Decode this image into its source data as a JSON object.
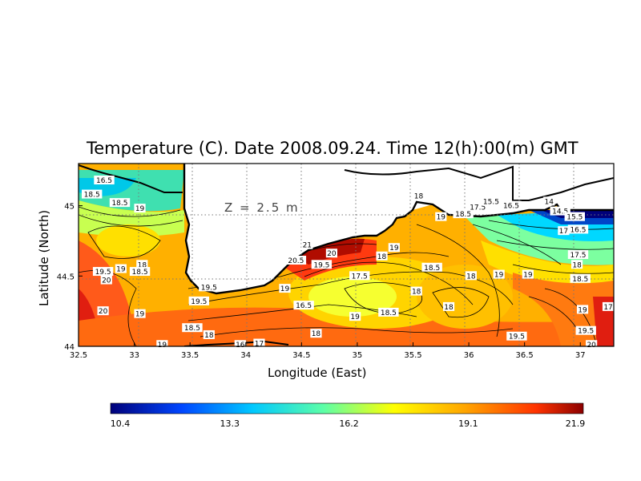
{
  "chart_data": {
    "type": "heatmap",
    "title": "Temperature (C). Date 2008.09.24. Time 12(h):00(m) GMT",
    "xlabel": "Longitude (East)",
    "ylabel": "Latitude (North)",
    "depth_label": "Z = 2.5 m",
    "xlim": [
      32.5,
      37.3
    ],
    "ylim": [
      44.0,
      45.3
    ],
    "x_ticks": [
      "32.5",
      "33",
      "33.5",
      "34",
      "34.5",
      "35",
      "35.5",
      "36",
      "36.5",
      "37"
    ],
    "x_tick_values": [
      32.5,
      33,
      33.5,
      34,
      34.5,
      35,
      35.5,
      36,
      36.5,
      37
    ],
    "y_ticks": [
      "44",
      "44.5",
      "45"
    ],
    "y_tick_values": [
      44.0,
      44.5,
      45.0
    ],
    "grid": true,
    "colorbar": {
      "min": 10.4,
      "max": 21.9,
      "tick_labels": [
        "10.4",
        "13.3",
        "16.2",
        "19.1",
        "21.9"
      ],
      "colors": [
        "#00007a",
        "#0046ff",
        "#00c8ff",
        "#5cffa8",
        "#ffff00",
        "#ffa500",
        "#ff3300",
        "#8b0000"
      ]
    },
    "contour_labels": [
      {
        "text": "19.5",
        "lon": 32.72,
        "lat": 44.53
      },
      {
        "text": "20",
        "lon": 32.75,
        "lat": 44.47
      },
      {
        "text": "20",
        "lon": 32.72,
        "lat": 44.25
      },
      {
        "text": "18",
        "lon": 33.07,
        "lat": 44.58
      },
      {
        "text": "18.5",
        "lon": 33.05,
        "lat": 44.53
      },
      {
        "text": "19",
        "lon": 32.88,
        "lat": 44.55
      },
      {
        "text": "19",
        "lon": 33.05,
        "lat": 44.98
      },
      {
        "text": "18.5",
        "lon": 32.87,
        "lat": 45.02
      },
      {
        "text": "19",
        "lon": 33.05,
        "lat": 44.23
      },
      {
        "text": "18.5",
        "lon": 33.52,
        "lat": 44.13
      },
      {
        "text": "19.5",
        "lon": 33.67,
        "lat": 44.42
      },
      {
        "text": "19.5",
        "lon": 33.58,
        "lat": 44.32
      },
      {
        "text": "18",
        "lon": 33.67,
        "lat": 44.08
      },
      {
        "text": "19",
        "lon": 33.25,
        "lat": 44.01
      },
      {
        "text": "19",
        "lon": 34.35,
        "lat": 44.41
      },
      {
        "text": "16.5",
        "lon": 34.52,
        "lat": 44.29
      },
      {
        "text": "18",
        "lon": 34.63,
        "lat": 44.09
      },
      {
        "text": "17",
        "lon": 34.12,
        "lat": 44.02
      },
      {
        "text": "16",
        "lon": 33.95,
        "lat": 44.01
      },
      {
        "text": "21",
        "lon": 34.55,
        "lat": 44.72
      },
      {
        "text": "20.5",
        "lon": 34.45,
        "lat": 44.61
      },
      {
        "text": "20",
        "lon": 34.77,
        "lat": 44.66
      },
      {
        "text": "19.5",
        "lon": 34.68,
        "lat": 44.58
      },
      {
        "text": "17.5",
        "lon": 35.02,
        "lat": 44.5
      },
      {
        "text": "18",
        "lon": 35.22,
        "lat": 44.64
      },
      {
        "text": "19",
        "lon": 35.33,
        "lat": 44.7
      },
      {
        "text": "19",
        "lon": 34.98,
        "lat": 44.21
      },
      {
        "text": "18.5",
        "lon": 35.28,
        "lat": 44.24
      },
      {
        "text": "18",
        "lon": 35.53,
        "lat": 44.39
      },
      {
        "text": "18.5",
        "lon": 35.67,
        "lat": 44.56
      },
      {
        "text": "18",
        "lon": 35.82,
        "lat": 44.28
      },
      {
        "text": "18",
        "lon": 36.02,
        "lat": 44.5
      },
      {
        "text": "19",
        "lon": 36.27,
        "lat": 44.51
      },
      {
        "text": "19",
        "lon": 36.53,
        "lat": 44.51
      },
      {
        "text": "19.5",
        "lon": 36.43,
        "lat": 44.07
      },
      {
        "text": "18",
        "lon": 35.55,
        "lat": 45.07
      },
      {
        "text": "19",
        "lon": 35.75,
        "lat": 44.92
      },
      {
        "text": "18.5",
        "lon": 35.95,
        "lat": 44.94
      },
      {
        "text": "17.5",
        "lon": 36.08,
        "lat": 44.99
      },
      {
        "text": "15.5",
        "lon": 36.2,
        "lat": 45.03
      },
      {
        "text": "16.5",
        "lon": 36.38,
        "lat": 45.0
      },
      {
        "text": "14",
        "lon": 36.72,
        "lat": 45.03
      },
      {
        "text": "14.5",
        "lon": 36.82,
        "lat": 44.96
      },
      {
        "text": "15.5",
        "lon": 36.95,
        "lat": 44.92
      },
      {
        "text": "17",
        "lon": 36.85,
        "lat": 44.82
      },
      {
        "text": "16.5",
        "lon": 36.98,
        "lat": 44.83
      },
      {
        "text": "17.5",
        "lon": 36.98,
        "lat": 44.65
      },
      {
        "text": "18",
        "lon": 36.97,
        "lat": 44.58
      },
      {
        "text": "18.5",
        "lon": 37.0,
        "lat": 44.48
      },
      {
        "text": "19",
        "lon": 37.02,
        "lat": 44.26
      },
      {
        "text": "19.5",
        "lon": 37.05,
        "lat": 44.11
      },
      {
        "text": "20",
        "lon": 37.1,
        "lat": 44.01
      },
      {
        "text": "17",
        "lon": 37.25,
        "lat": 44.28
      },
      {
        "text": "16.5",
        "lon": 32.73,
        "lat": 45.18
      },
      {
        "text": "18.5",
        "lon": 32.62,
        "lat": 45.08
      }
    ]
  }
}
